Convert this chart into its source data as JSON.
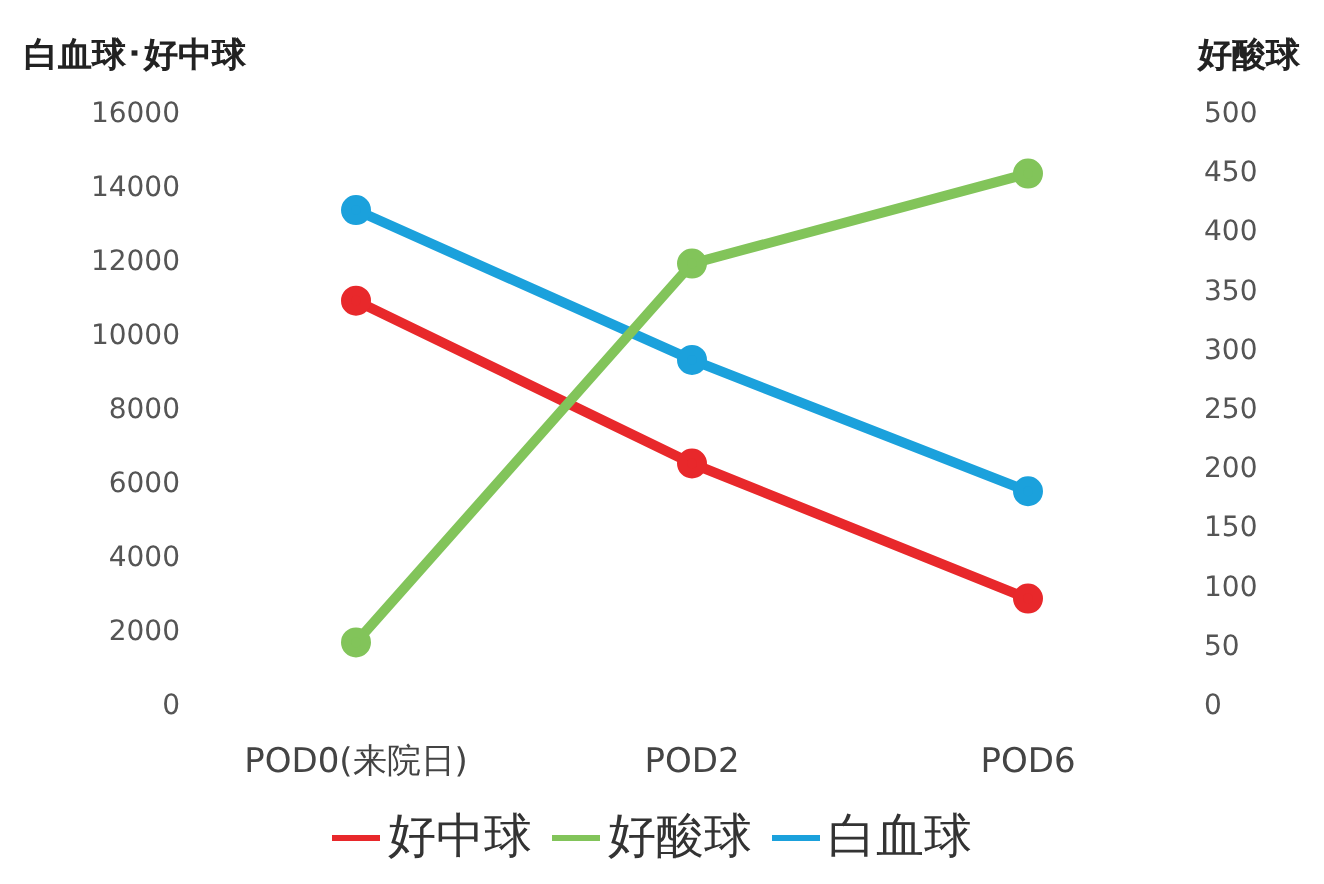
{
  "chart_data": {
    "type": "line",
    "ylabel": "白血球･好中球",
    "y2label": "好酸球",
    "categories": [
      "POD0(来院日)",
      "POD2",
      "POD6"
    ],
    "series": [
      {
        "name": "白血球",
        "color": "#1ba1dc",
        "values": [
          13350,
          9300,
          5750
        ]
      },
      {
        "name": "好中球",
        "color": "#e8282b",
        "values": [
          10900,
          6500,
          2850
        ]
      },
      {
        "name": "好酸球",
        "color": "#82c45a",
        "values": [
          52,
          372,
          448
        ],
        "axis": "y2"
      }
    ],
    "ylim": [
      0,
      16000
    ],
    "yticks": [
      0,
      2000,
      4000,
      6000,
      8000,
      10000,
      12000,
      14000,
      16000
    ],
    "y2lim": [
      0,
      500
    ],
    "y2ticks": [
      0,
      50,
      100,
      150,
      200,
      250,
      300,
      350,
      400,
      450,
      500
    ],
    "grid": false,
    "legend": "bottom",
    "marker": "circle",
    "line_style": "solid"
  }
}
